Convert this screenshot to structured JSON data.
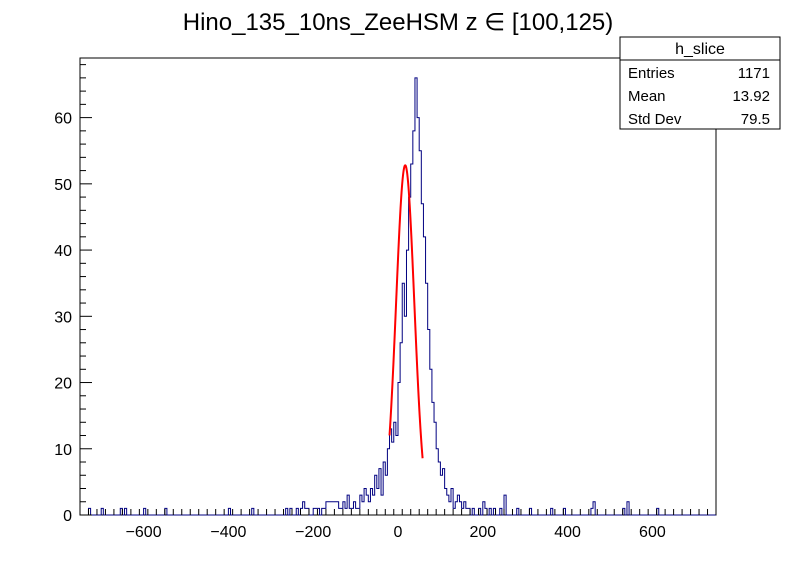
{
  "chart_data": {
    "type": "histogram",
    "title": "Hino_135_10ns_ZeeHSM z  ∈ [100,125)",
    "xlabel": "",
    "ylabel": "",
    "xlim": [
      -750,
      750
    ],
    "ylim": [
      0,
      69
    ],
    "xticks": [
      -600,
      -400,
      -200,
      0,
      200,
      400,
      600
    ],
    "yticks": [
      0,
      10,
      20,
      30,
      40,
      50,
      60
    ],
    "bin_width": 5,
    "series": [
      {
        "color": "#000080",
        "points": [
          [
            -730,
            1
          ],
          [
            -700,
            1
          ],
          [
            -655,
            1
          ],
          [
            -645,
            1
          ],
          [
            -600,
            1
          ],
          [
            -550,
            1
          ],
          [
            -400,
            1
          ],
          [
            -345,
            1
          ],
          [
            -265,
            1
          ],
          [
            -255,
            1
          ],
          [
            -240,
            1
          ],
          [
            -230,
            1
          ],
          [
            -225,
            2
          ],
          [
            -220,
            1
          ],
          [
            -215,
            1
          ],
          [
            -200,
            1
          ],
          [
            -195,
            1
          ],
          [
            -190,
            1
          ],
          [
            -180,
            1
          ],
          [
            -175,
            1
          ],
          [
            -170,
            2
          ],
          [
            -165,
            2
          ],
          [
            -160,
            2
          ],
          [
            -155,
            2
          ],
          [
            -150,
            2
          ],
          [
            -145,
            2
          ],
          [
            -140,
            1
          ],
          [
            -135,
            1
          ],
          [
            -130,
            2
          ],
          [
            -125,
            1
          ],
          [
            -120,
            3
          ],
          [
            -115,
            1
          ],
          [
            -110,
            1
          ],
          [
            -105,
            2
          ],
          [
            -100,
            1
          ],
          [
            -95,
            1
          ],
          [
            -90,
            3
          ],
          [
            -85,
            2
          ],
          [
            -80,
            4
          ],
          [
            -75,
            3
          ],
          [
            -70,
            2
          ],
          [
            -65,
            4
          ],
          [
            -60,
            3
          ],
          [
            -55,
            6
          ],
          [
            -50,
            4
          ],
          [
            -45,
            7
          ],
          [
            -40,
            3
          ],
          [
            -35,
            8
          ],
          [
            -30,
            6
          ],
          [
            -25,
            10
          ],
          [
            -20,
            13
          ],
          [
            -15,
            11
          ],
          [
            -10,
            14
          ],
          [
            -5,
            12
          ],
          [
            0,
            20
          ],
          [
            5,
            26
          ],
          [
            10,
            35
          ],
          [
            15,
            30
          ],
          [
            20,
            40
          ],
          [
            25,
            48
          ],
          [
            30,
            53
          ],
          [
            35,
            58
          ],
          [
            40,
            66
          ],
          [
            45,
            60
          ],
          [
            50,
            55
          ],
          [
            55,
            47
          ],
          [
            60,
            42
          ],
          [
            65,
            35
          ],
          [
            70,
            28
          ],
          [
            75,
            22
          ],
          [
            80,
            17
          ],
          [
            85,
            14
          ],
          [
            90,
            10
          ],
          [
            95,
            8
          ],
          [
            100,
            6
          ],
          [
            105,
            7
          ],
          [
            110,
            4
          ],
          [
            115,
            3
          ],
          [
            120,
            2
          ],
          [
            125,
            4
          ],
          [
            130,
            1
          ],
          [
            135,
            2
          ],
          [
            140,
            3
          ],
          [
            145,
            2
          ],
          [
            150,
            1
          ],
          [
            155,
            2
          ],
          [
            160,
            1
          ],
          [
            165,
            1
          ],
          [
            175,
            1
          ],
          [
            190,
            1
          ],
          [
            200,
            2
          ],
          [
            205,
            1
          ],
          [
            215,
            1
          ],
          [
            225,
            1
          ],
          [
            240,
            1
          ],
          [
            250,
            3
          ],
          [
            280,
            1
          ],
          [
            310,
            1
          ],
          [
            360,
            1
          ],
          [
            390,
            1
          ],
          [
            455,
            1
          ],
          [
            460,
            2
          ],
          [
            530,
            1
          ],
          [
            540,
            2
          ],
          [
            610,
            1
          ]
        ]
      }
    ],
    "fit": {
      "color": "#ff0000",
      "type": "gaus",
      "amplitude": 52.8,
      "mean": 17,
      "sigma": 21.5,
      "range": [
        -20,
        58
      ]
    },
    "stats_box": {
      "name": "h_slice",
      "rows": [
        {
          "label": "Entries",
          "value": "1171"
        },
        {
          "label": "Mean",
          "value": "13.92"
        },
        {
          "label": "Std Dev",
          "value": "79.5"
        }
      ]
    }
  }
}
